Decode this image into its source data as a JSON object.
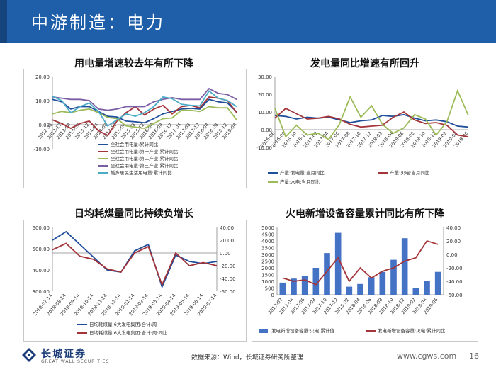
{
  "header": {
    "title": "中游制造：电力"
  },
  "charts": [
    {
      "title": "用电量增速较去年有所下降",
      "chart_data": {
        "type": "line",
        "yticks": [
          "20.00",
          "10.00",
          "0.00",
          "-10.00"
        ],
        "ylim": [
          -10,
          20
        ],
        "x": [
          "2012-08",
          "2012-12",
          "2013-04",
          "2013-08",
          "2013-12",
          "2014-04",
          "2014-08",
          "2014-12",
          "2015-04",
          "2015-08",
          "2015-12",
          "2016-04",
          "2016-08",
          "2016-12",
          "2017-04",
          "2017-08",
          "2017-12",
          "2018-04",
          "2018-08",
          "2018-12",
          "2019-04"
        ],
        "series": [
          {
            "name": "全社会用电量:累计同比",
            "color": "#1f4e9a",
            "values": [
              10.5,
              9.5,
              6.5,
              7.5,
              7.5,
              5.5,
              3.5,
              3.2,
              1.5,
              1.2,
              0.8,
              2.5,
              4.5,
              5.5,
              6.5,
              6.8,
              6.5,
              10.5,
              9.5,
              9.0,
              5.3
            ]
          },
          {
            "name": "全社会用电量:第一产业:累计同比",
            "color": "#a3343a",
            "values": [
              2.0,
              0.5,
              -1.5,
              0.5,
              1.5,
              -2.5,
              -4.5,
              1.5,
              5.0,
              7.5,
              4.0,
              6.5,
              8.0,
              4.5,
              7.5,
              8.0,
              7.0,
              11.5,
              11.0,
              10.0,
              5.0
            ]
          },
          {
            "name": "全社会用电量:第二产业:累计同比",
            "color": "#9cbb58",
            "values": [
              4.5,
              5.5,
              5.0,
              6.0,
              6.5,
              5.0,
              3.0,
              2.5,
              -0.5,
              -1.0,
              -1.5,
              0.5,
              2.5,
              2.8,
              6.0,
              6.0,
              5.5,
              7.5,
              7.0,
              7.0,
              2.0
            ]
          },
          {
            "name": "全社会用电量:第三产业:累计同比",
            "color": "#7b5ea4",
            "values": [
              11.5,
              11.0,
              10.5,
              10.5,
              10.0,
              6.5,
              6.0,
              6.5,
              7.5,
              7.5,
              7.5,
              9.5,
              10.5,
              11.2,
              10.5,
              10.5,
              10.5,
              15.0,
              13.0,
              12.5,
              10.5
            ]
          },
          {
            "name": "城乡居民生活用电量:累计同比",
            "color": "#4bacc6",
            "values": [
              11.8,
              10.0,
              5.0,
              7.5,
              9.0,
              5.5,
              -0.5,
              2.0,
              4.5,
              3.5,
              5.0,
              7.5,
              11.5,
              10.8,
              8.5,
              8.0,
              7.8,
              14.0,
              11.0,
              10.0,
              7.5
            ]
          }
        ]
      }
    },
    {
      "title": "发电量同比增速有所回升",
      "chart_data": {
        "type": "line",
        "yticks": [
          "30.00",
          "20.00",
          "10.00",
          "0.00",
          "-10.00"
        ],
        "ylim": [
          -10,
          30
        ],
        "x": [
          "2016-06",
          "2016-08",
          "2016-10",
          "2016-12",
          "2017-02",
          "2017-04",
          "2017-06",
          "2017-08",
          "2017-10",
          "2017-12",
          "2018-02",
          "2018-04",
          "2018-06",
          "2018-08",
          "2018-10",
          "2018-12",
          "2019-02",
          "2019-04",
          "2019-06"
        ],
        "series": [
          {
            "name": "产量:发电量:当月同比",
            "color": "#1f4e9a",
            "values": [
              8.0,
              7.5,
              6.0,
              7.0,
              6.5,
              7.0,
              5.5,
              4.0,
              5.0,
              5.5,
              8.0,
              7.5,
              8.5,
              6.5,
              5.0,
              5.5,
              4.5,
              2.0,
              1.5
            ]
          },
          {
            "name": "产量:火电:当月同比",
            "color": "#a3343a",
            "values": [
              6.5,
              12.0,
              9.0,
              6.0,
              6.5,
              7.5,
              6.0,
              3.0,
              1.5,
              2.0,
              2.5,
              7.0,
              10.0,
              5.5,
              3.5,
              4.0,
              2.5,
              -3.0,
              -4.0
            ]
          },
          {
            "name": "产量:水电:当月同比",
            "color": "#9cbb58",
            "values": [
              12.0,
              -4.0,
              2.5,
              -3.0,
              -2.0,
              -5.5,
              3.0,
              18.5,
              7.0,
              13.5,
              3.0,
              -2.0,
              1.0,
              8.5,
              6.0,
              -3.0,
              4.5,
              22.0,
              8.0
            ]
          }
        ]
      }
    },
    {
      "title": "日均耗煤量同比持续负增长",
      "chart_data": {
        "type": "line",
        "yticks_left": [
          "600.00",
          "500.00",
          "400.00",
          "300.00"
        ],
        "ylim_left": [
          300,
          600
        ],
        "yticks_right": [
          "40.00",
          "20.00",
          "0.00",
          "-20.00",
          "-40.00",
          "-60.00"
        ],
        "ylim_right": [
          -60,
          40
        ],
        "x": [
          "2018-07-14",
          "2018-08-14",
          "2018-09-14",
          "2018-10-14",
          "2018-11-14",
          "2018-12-14",
          "2019-01-14",
          "2019-02-14",
          "2019-03-14",
          "2019-04-14",
          "2019-05-14",
          "2019-06-14",
          "2019-07-14"
        ],
        "series": [
          {
            "name": "日均耗煤量:6大发电集团:合计:周",
            "color": "#1f4e9a",
            "axis": "left",
            "values": [
              540,
              580,
              520,
              460,
              400,
              390,
              490,
              520,
              320,
              470,
              440,
              430,
              440
            ]
          },
          {
            "name": "日均耗煤量:6大发电集团:合计:周:同比",
            "color": "#a3343a",
            "axis": "right",
            "values": [
              5,
              15,
              -5,
              -10,
              -25,
              -30,
              0,
              10,
              -50,
              0,
              -20,
              -15,
              -20
            ]
          }
        ]
      }
    },
    {
      "title": "火电新增设备容量累计同比有所下降",
      "chart_data": {
        "type": "bar",
        "yticks_left": [
          "5000",
          "4500",
          "4000",
          "3500",
          "3000",
          "2500",
          "2000",
          "1500",
          "1000",
          "500",
          "0"
        ],
        "ylim_left": [
          0,
          5000
        ],
        "yticks_right": [
          "40.00",
          "20.00",
          "0.00",
          "-20.00",
          "-40.00",
          "-60.00"
        ],
        "ylim_right": [
          -60,
          40
        ],
        "x": [
          "2017-02",
          "2017-04",
          "2017-06",
          "2017-08",
          "2017-10",
          "2017-12",
          "2018-02",
          "2018-04",
          "2018-06",
          "2018-08",
          "2018-10",
          "2018-12",
          "2019-02",
          "2019-04",
          "2019-06"
        ],
        "series": [
          {
            "name": "发电新增设备容量:火电:累计值",
            "color": "#4472c4",
            "axis": "left",
            "values": [
              900,
              1200,
              1400,
              2000,
              3100,
              4600,
              600,
              800,
              1300,
              1700,
              2600,
              4200,
              500,
              1000,
              1700
            ]
          },
          {
            "name": "发电新增设备容量:火电:累计同比",
            "color": "#a3343a",
            "axis": "right",
            "values": [
              -35,
              -40,
              -38,
              -45,
              -25,
              -5,
              -40,
              -20,
              -35,
              -25,
              -20,
              -10,
              -5,
              20,
              15
            ]
          }
        ]
      }
    }
  ],
  "footer": {
    "logo_cn": "长城证券",
    "logo_en": "GREAT WALL SECURITIES",
    "source": "数据来源：Wind，长城证券研究所整理",
    "url": "www.cgws.com",
    "page": "16"
  }
}
